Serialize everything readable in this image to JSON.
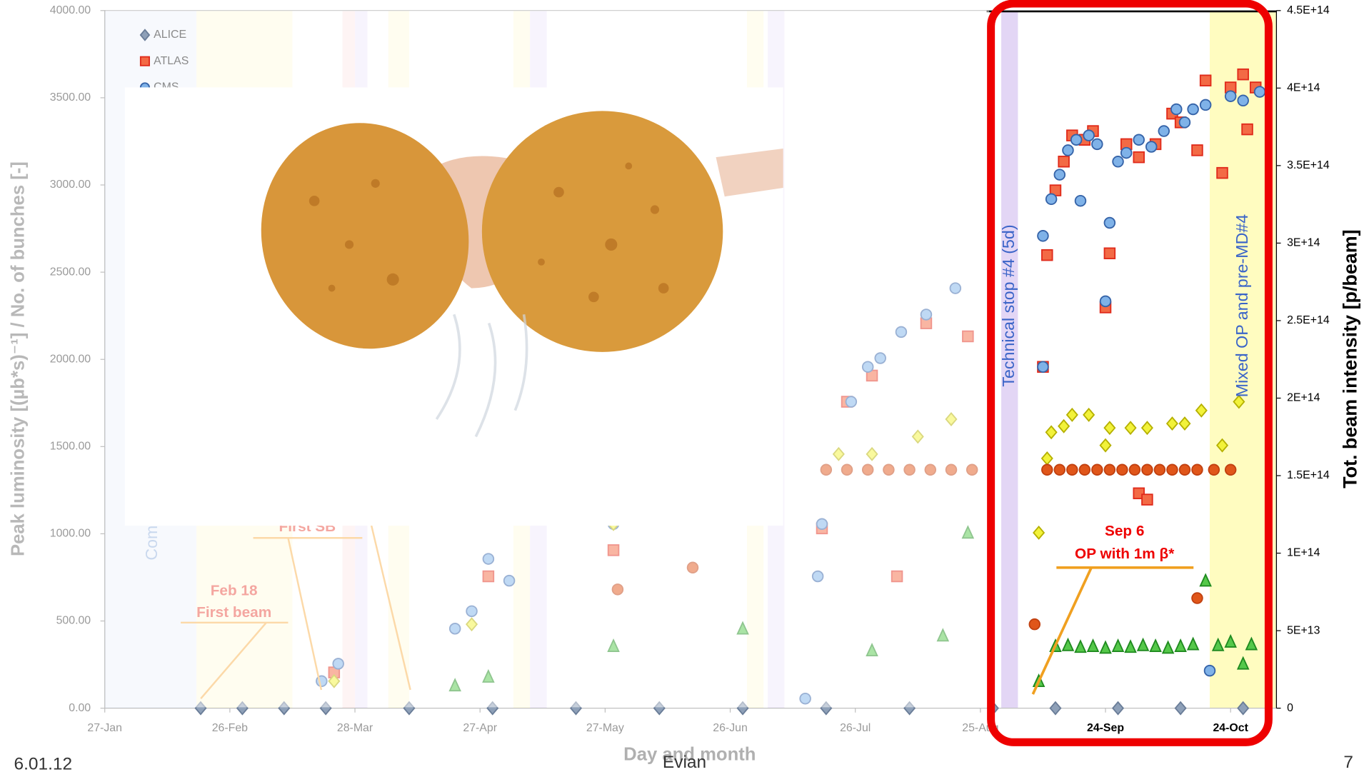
{
  "chart_data": {
    "type": "scatter",
    "x_label": "Day and month",
    "y_label": "Peak luminosity [(µb*s)⁻¹]    /    No. of bunches [-]",
    "y2_label": "Tot. beam intensity [p/beam]",
    "xlim": [
      27,
      308
    ],
    "xticks": [
      {
        "value": 27,
        "label": "27-Jan"
      },
      {
        "value": 57,
        "label": "26-Feb"
      },
      {
        "value": 87,
        "label": "28-Mar"
      },
      {
        "value": 117,
        "label": "27-Apr"
      },
      {
        "value": 147,
        "label": "27-May"
      },
      {
        "value": 177,
        "label": "26-Jun"
      },
      {
        "value": 207,
        "label": "26-Jul"
      },
      {
        "value": 237,
        "label": "25-Aug"
      },
      {
        "value": 267,
        "label": "24-Sep"
      },
      {
        "value": 297,
        "label": "24-Oct"
      }
    ],
    "ylim": [
      0,
      4000
    ],
    "yticks": [
      {
        "value": 0,
        "label": "0.00"
      },
      {
        "value": 500,
        "label": "500.00"
      },
      {
        "value": 1000,
        "label": "1000.00"
      },
      {
        "value": 1500,
        "label": "1500.00"
      },
      {
        "value": 2000,
        "label": "2000.00"
      },
      {
        "value": 2500,
        "label": "2500.00"
      },
      {
        "value": 3000,
        "label": "3000.00"
      },
      {
        "value": 3500,
        "label": "3500.00"
      },
      {
        "value": 4000,
        "label": "4000.00"
      }
    ],
    "y2lim": [
      0,
      450000000000000
    ],
    "y2ticks": [
      0,
      {
        "value": 50000000000000,
        "label": "5E+13"
      },
      {
        "value": 100000000000000,
        "label": "1E+14"
      },
      {
        "value": 150000000000000,
        "label": "1.5E+14"
      },
      {
        "value": 200000000000000,
        "label": "2E+14"
      },
      {
        "value": 250000000000000,
        "label": "2.5E+14"
      },
      {
        "value": 300000000000000,
        "label": "3E+14"
      },
      {
        "value": 350000000000000,
        "label": "3.5E+14"
      },
      {
        "value": 400000000000000,
        "label": "4E+14"
      },
      {
        "value": 450000000000000,
        "label": "4.5E+14"
      }
    ],
    "grid": false,
    "bands": [
      {
        "from": 27,
        "to": 49,
        "color": "#eef3fb",
        "label": "Commissi"
      },
      {
        "from": 49,
        "to": 72,
        "color": "#fffbe0"
      },
      {
        "from": 84,
        "to": 87,
        "color": "#fde8e8"
      },
      {
        "from": 87,
        "to": 90,
        "color": "#efe8fa"
      },
      {
        "from": 95,
        "to": 100,
        "color": "#fffbe0"
      },
      {
        "from": 125,
        "to": 129,
        "color": "#fffbe0"
      },
      {
        "from": 129,
        "to": 133,
        "color": "#efe8fa"
      },
      {
        "from": 181,
        "to": 185,
        "color": "#fffbe0"
      },
      {
        "from": 186,
        "to": 190,
        "color": "#efe8fa"
      },
      {
        "from": 242,
        "to": 246,
        "color": "#e3d6f5",
        "label": "Technical stop #4 (5d)"
      },
      {
        "from": 292,
        "to": 308,
        "color": "#fffcc0",
        "label": "Mixed OP and pre-MD#4"
      }
    ],
    "annotations": [
      "Feb 18",
      "First beam",
      "First SB",
      "Sep 6",
      "OP with 1m β*"
    ],
    "series": [
      {
        "name": "ALICE",
        "color": "#8ea0b8",
        "stroke": "#6a7d98",
        "marker": "diamond",
        "x": [
          50,
          60,
          70,
          80,
          100,
          120,
          140,
          160,
          180,
          200,
          220,
          240,
          255,
          270,
          285,
          300
        ],
        "values": [
          0,
          0,
          0,
          0,
          0,
          0,
          0,
          0,
          0,
          0,
          0,
          0,
          0,
          0,
          0,
          0
        ]
      },
      {
        "name": "ATLAS",
        "color": "#f36a45",
        "stroke": "#e02a1a",
        "marker": "square",
        "x": [
          82,
          119,
          149,
          199,
          205,
          211,
          217,
          224,
          234,
          252,
          253,
          255,
          257,
          259,
          262,
          264,
          267,
          268,
          272,
          275,
          275,
          277,
          279,
          283,
          285,
          289,
          291,
          295,
          297,
          300,
          301,
          303
        ],
        "values": [
          205,
          756,
          906,
          1031,
          1757,
          1907,
          756,
          2207,
          2132,
          1957,
          2598,
          2969,
          3134,
          3284,
          3259,
          3309,
          2298,
          2608,
          3234,
          3159,
          1232,
          1196,
          3234,
          3409,
          3359,
          3199,
          3599,
          3069,
          3559,
          3634,
          3319,
          3559
        ]
      },
      {
        "name": "CMS",
        "color": "#7fb2e8",
        "stroke": "#3563a8",
        "marker": "circle",
        "x": [
          79,
          83,
          111,
          115,
          119,
          124,
          149,
          195,
          198,
          199,
          206,
          210,
          213,
          218,
          224,
          231,
          252,
          252,
          254,
          256,
          258,
          260,
          261,
          263,
          265,
          267,
          268,
          270,
          272,
          275,
          278,
          281,
          284,
          286,
          288,
          291,
          292,
          297,
          300,
          304
        ],
        "values": [
          155,
          255,
          456,
          556,
          856,
          731,
          1056,
          55,
          756,
          1056,
          1757,
          1957,
          2007,
          2157,
          2257,
          2408,
          1957,
          2708,
          2919,
          3059,
          3199,
          3259,
          2909,
          3284,
          3234,
          2333,
          2783,
          3134,
          3184,
          3259,
          3219,
          3309,
          3434,
          3359,
          3434,
          3459,
          215,
          3509,
          3484,
          3534
        ]
      },
      {
        "color": "#f2f23a",
        "stroke": "#b5b000",
        "marker": "diamond",
        "x": [
          82,
          115,
          149,
          203,
          211,
          222,
          230,
          251,
          253,
          254,
          257,
          259,
          263,
          267,
          268,
          273,
          277,
          283,
          286,
          290,
          295,
          299
        ],
        "values": [
          155,
          481,
          1056,
          1457,
          1457,
          1557,
          1657,
          1006,
          1432,
          1582,
          1617,
          1682,
          1682,
          1507,
          1607,
          1607,
          1607,
          1632,
          1632,
          1707,
          1507,
          1757
        ]
      },
      {
        "color": "#e0561a",
        "stroke": "#c04010",
        "marker": "circle",
        "x": [
          150,
          168,
          200,
          205,
          210,
          215,
          220,
          225,
          230,
          235,
          250,
          253,
          256,
          259,
          262,
          265,
          268,
          271,
          274,
          277,
          280,
          283,
          286,
          289,
          289,
          293,
          297
        ],
        "values": [
          681,
          806,
          1367,
          1367,
          1367,
          1367,
          1367,
          1367,
          1367,
          1367,
          481,
          1367,
          1367,
          1367,
          1367,
          1367,
          1367,
          1367,
          1367,
          1367,
          1367,
          1367,
          1367,
          1367,
          631,
          1367,
          1367
        ]
      },
      {
        "color": "#55c84a",
        "stroke": "#1f8a1f",
        "marker": "triangle",
        "x": [
          111,
          119,
          149,
          180,
          211,
          228,
          234,
          251,
          255,
          258,
          261,
          264,
          267,
          270,
          273,
          276,
          279,
          282,
          285,
          288,
          291,
          294,
          297,
          300,
          302
        ],
        "values": [
          130,
          180,
          356,
          456,
          331,
          416,
          1006,
          155,
          356,
          361,
          351,
          356,
          346,
          356,
          351,
          361,
          356,
          346,
          356,
          366,
          731,
          361,
          381,
          255,
          366
        ]
      }
    ]
  },
  "footer": {
    "date": "6.01.12",
    "place": "Evian",
    "page": "7"
  }
}
